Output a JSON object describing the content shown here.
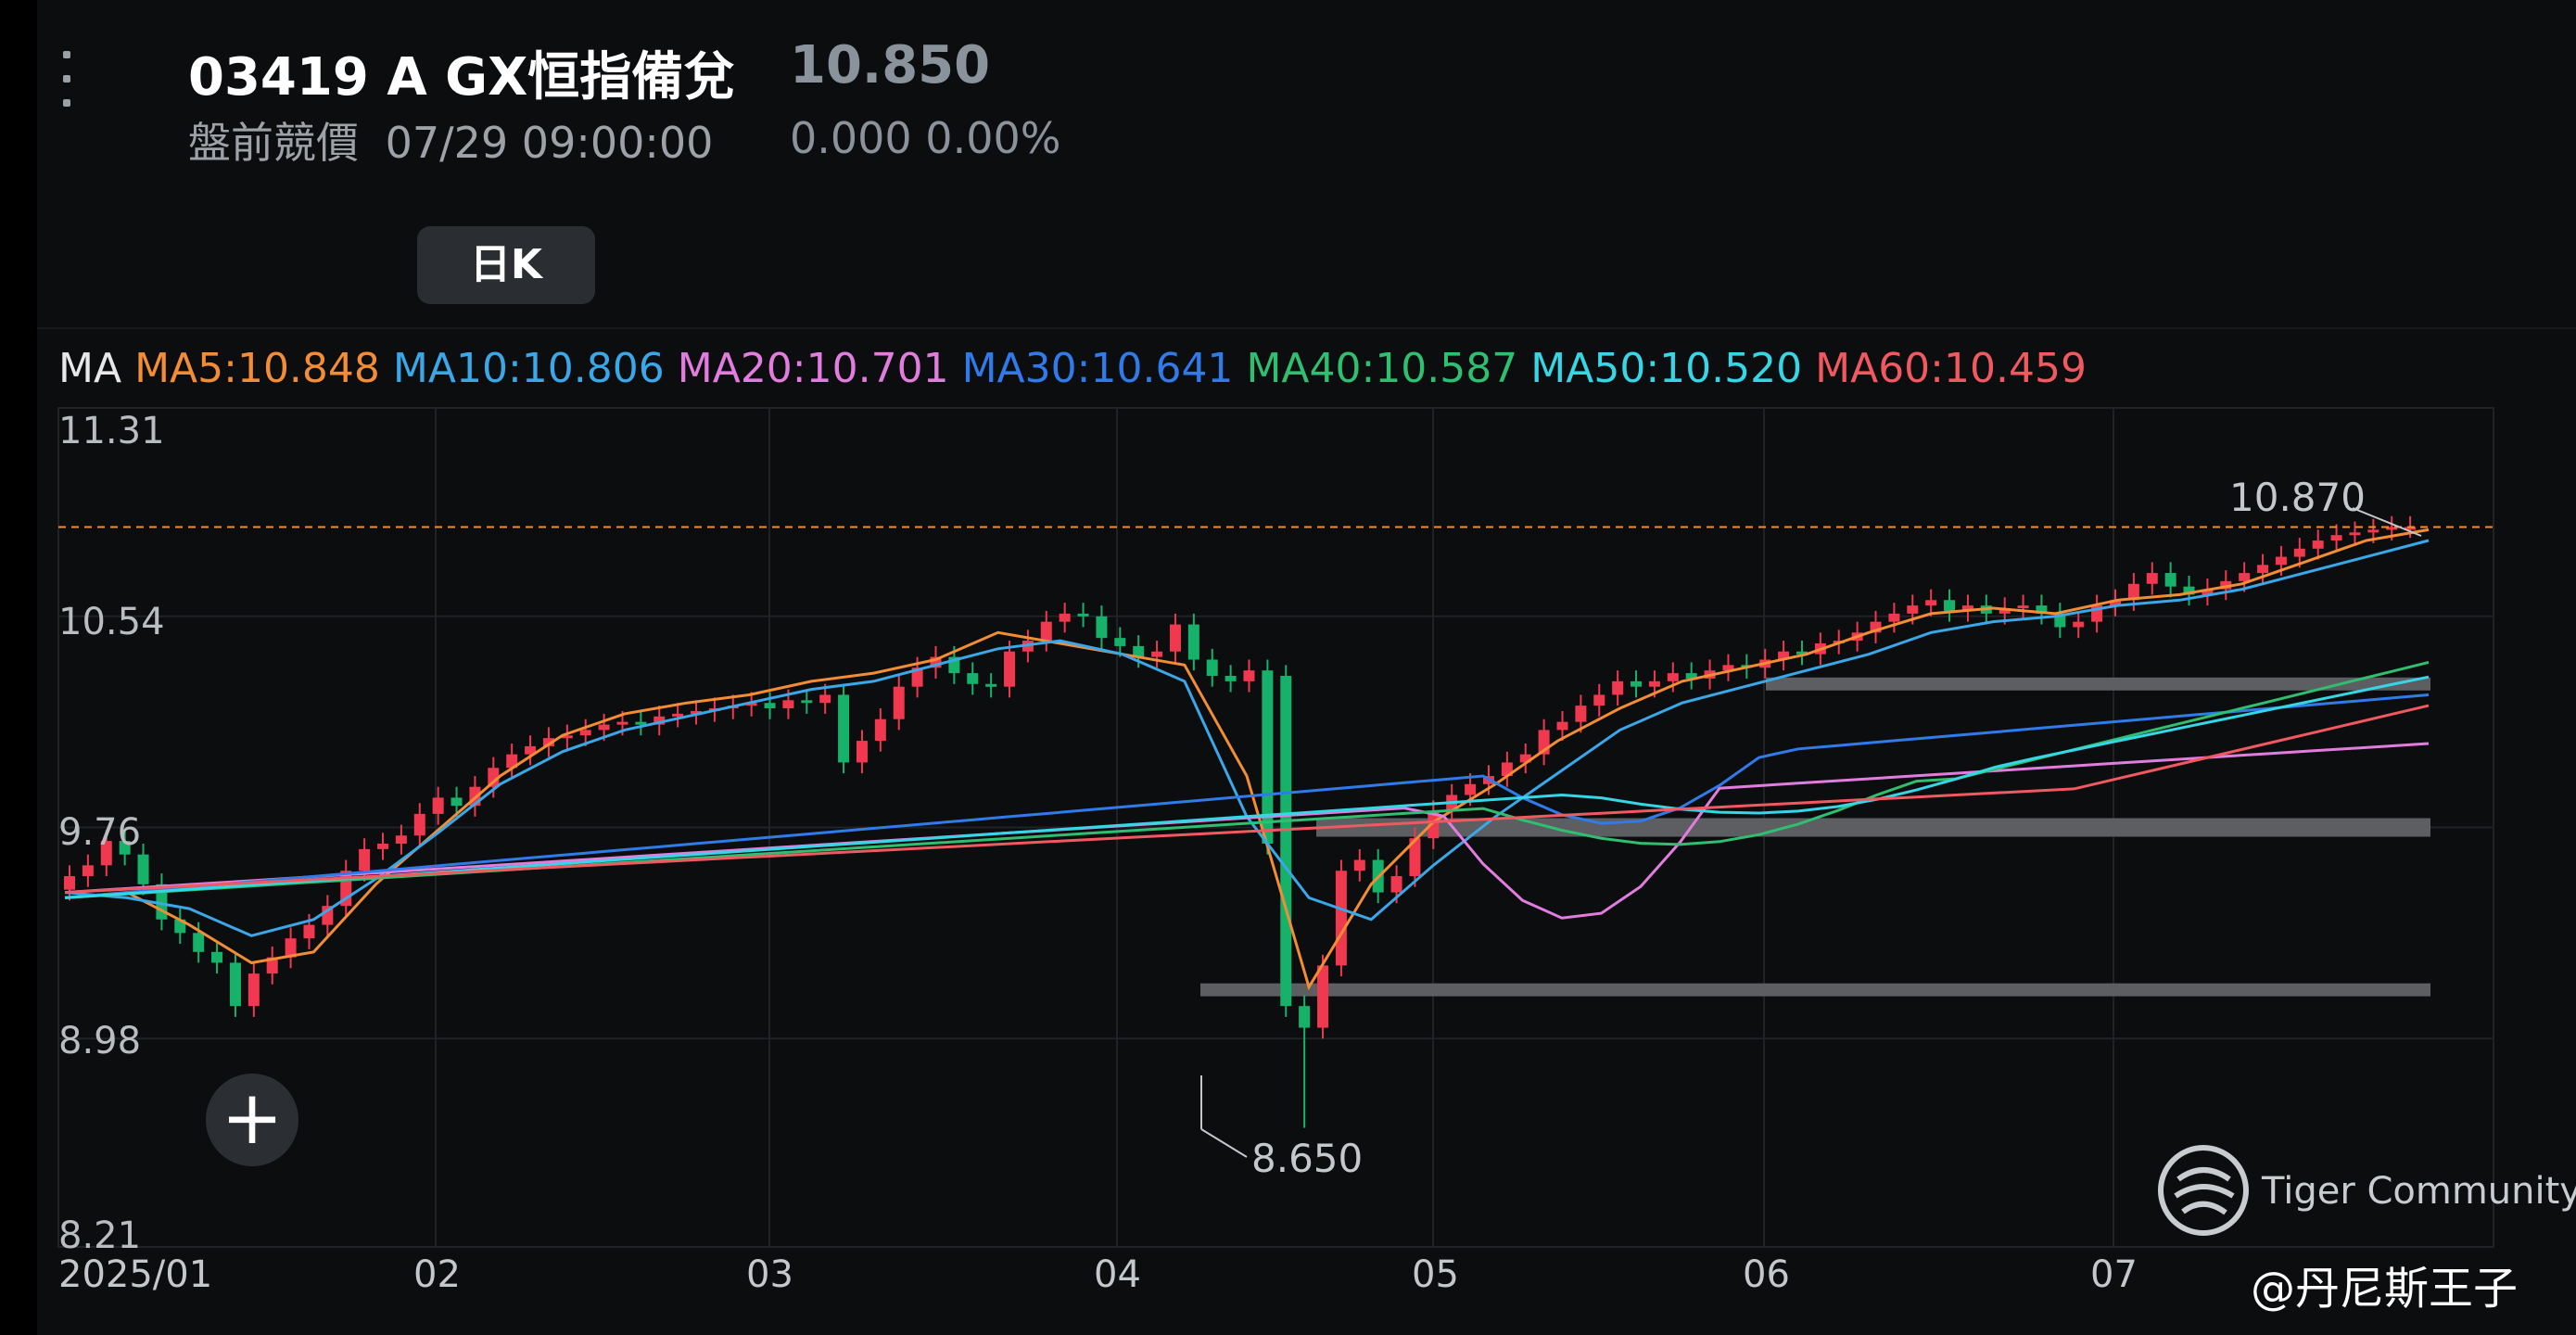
{
  "header": {
    "title": "03419  A GX恒指備兌",
    "price": "10.850",
    "session_label": "盤前競價",
    "datetime": "07/29 09:00:00",
    "change": "0.000 0.00%",
    "period_button": "日K"
  },
  "ma_legend": [
    {
      "label": "MA",
      "color": "#e8e8ea"
    },
    {
      "label": "MA5:10.848",
      "color": "#f28d35"
    },
    {
      "label": "MA10:10.806",
      "color": "#3aa7e8"
    },
    {
      "label": "MA20:10.701",
      "color": "#e27ddf"
    },
    {
      "label": "MA30:10.641",
      "color": "#2f7bea"
    },
    {
      "label": "MA40:10.587",
      "color": "#2fbf71"
    },
    {
      "label": "MA50:10.520",
      "color": "#35d6e6"
    },
    {
      "label": "MA60:10.459",
      "color": "#f0595f"
    }
  ],
  "chart_data": {
    "type": "line",
    "y_ticks": [
      "11.31",
      "10.54",
      "9.76",
      "8.98",
      "8.21"
    ],
    "x_ticks": [
      "2025/01",
      "02",
      "03",
      "04",
      "05",
      "06",
      "07"
    ],
    "ylim": [
      8.21,
      11.31
    ],
    "current_price_line": 10.87,
    "high_label": "10.870",
    "low_label": "8.650",
    "support_bands": [
      10.29,
      9.76,
      9.16
    ],
    "up_color": "#f0394f",
    "down_color": "#17b26a",
    "candles_close": [
      9.58,
      9.62,
      9.71,
      9.66,
      9.55,
      9.42,
      9.37,
      9.3,
      9.26,
      9.1,
      9.22,
      9.28,
      9.35,
      9.4,
      9.47,
      9.6,
      9.68,
      9.7,
      9.73,
      9.81,
      9.87,
      9.84,
      9.91,
      9.98,
      10.03,
      10.06,
      10.09,
      10.1,
      10.12,
      10.14,
      10.15,
      10.14,
      10.17,
      10.18,
      10.19,
      10.2,
      10.21,
      10.22,
      10.2,
      10.23,
      10.22,
      10.25,
      10.0,
      10.08,
      10.16,
      10.28,
      10.35,
      10.39,
      10.33,
      10.29,
      10.28,
      10.41,
      10.45,
      10.52,
      10.55,
      10.54,
      10.46,
      10.43,
      10.39,
      10.41,
      10.51,
      10.38,
      10.32,
      10.3,
      10.34,
      9.7,
      9.1,
      9.02,
      9.25,
      9.6,
      9.64,
      9.52,
      9.58,
      9.72,
      9.82,
      9.88,
      9.92,
      9.95,
      10.0,
      10.03,
      10.12,
      10.15,
      10.21,
      10.25,
      10.3,
      10.28,
      10.3,
      10.33,
      10.31,
      10.34,
      10.36,
      10.35,
      10.38,
      10.41,
      10.4,
      10.44,
      10.45,
      10.48,
      10.52,
      10.55,
      10.58,
      10.6,
      10.56,
      10.58,
      10.55,
      10.57,
      10.58,
      10.55,
      10.5,
      10.52,
      10.58,
      10.6,
      10.66,
      10.7,
      10.65,
      10.62,
      10.64,
      10.67,
      10.7,
      10.73,
      10.76,
      10.79,
      10.82,
      10.84,
      10.85,
      10.86,
      10.87,
      10.87
    ],
    "ma": {
      "MA5": [
        9.5,
        9.52,
        9.4,
        9.26,
        9.3,
        9.55,
        9.75,
        9.95,
        10.1,
        10.18,
        10.22,
        10.25,
        10.3,
        10.33,
        10.38,
        10.48,
        10.44,
        10.4,
        10.36,
        9.95,
        9.17,
        9.55,
        9.78,
        9.92,
        10.08,
        10.2,
        10.3,
        10.35,
        10.4,
        10.48,
        10.55,
        10.57,
        10.55,
        10.6,
        10.62,
        10.66,
        10.74,
        10.82,
        10.86
      ],
      "MA10": [
        9.52,
        9.5,
        9.46,
        9.36,
        9.42,
        9.57,
        9.74,
        9.92,
        10.04,
        10.12,
        10.17,
        10.22,
        10.27,
        10.3,
        10.36,
        10.42,
        10.45,
        10.4,
        10.3,
        9.8,
        9.5,
        9.42,
        9.62,
        9.8,
        9.96,
        10.12,
        10.22,
        10.28,
        10.34,
        10.4,
        10.48,
        10.52,
        10.54,
        10.58,
        10.6,
        10.64,
        10.7,
        10.76,
        10.82
      ]
    }
  },
  "overlay": {
    "add_button": "+",
    "watermark": "Tiger Community",
    "handle": "@丹尼斯王子"
  }
}
